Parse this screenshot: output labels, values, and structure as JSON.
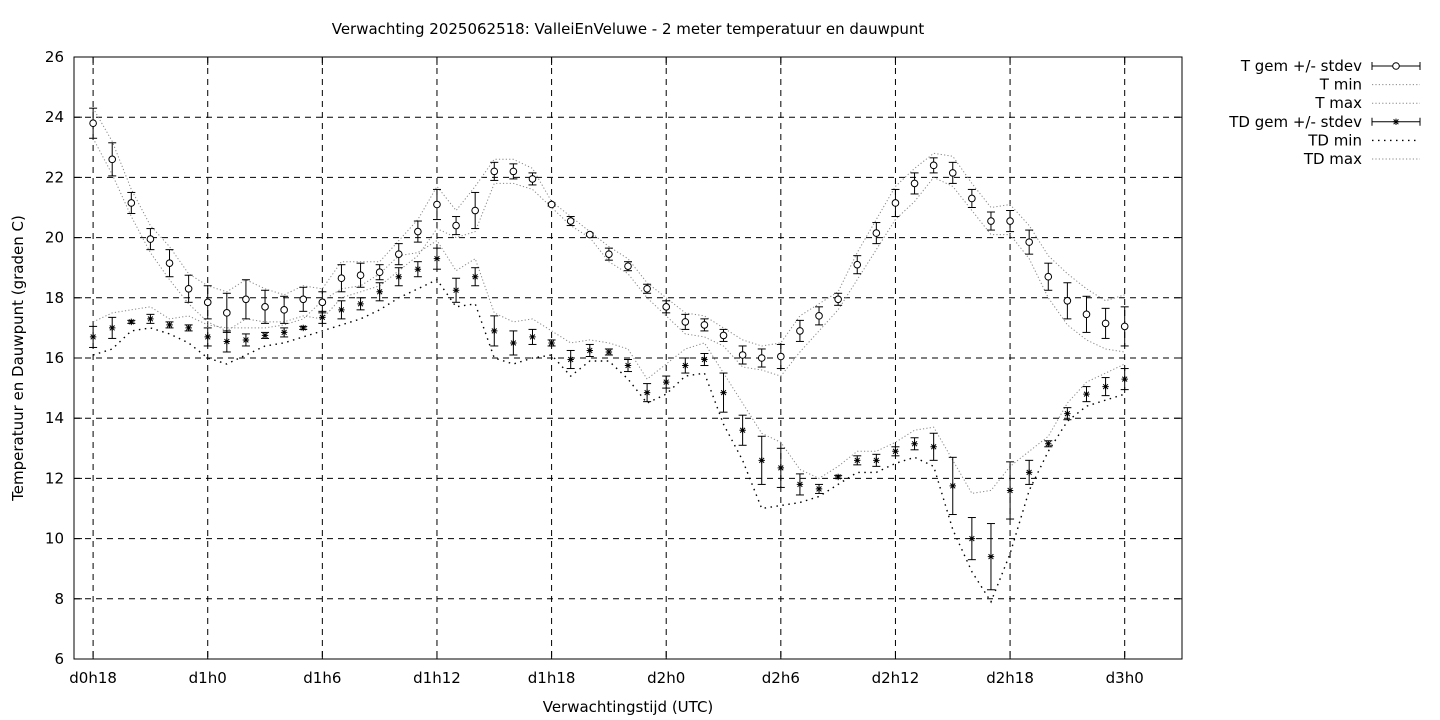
{
  "chart_data": {
    "type": "line",
    "title": "Verwachting 2025062518: ValleiEnVeluwe - 2 meter temperatuur en dauwpunt",
    "xlabel": "Verwachtingstijd (UTC)",
    "ylabel": "Temperatuur en Dauwpunt (graden C)",
    "xlim": [
      -1,
      57
    ],
    "ylim": [
      6,
      26
    ],
    "grid": true,
    "legend_position": "outside-right",
    "x_ticks": [
      {
        "x": 0,
        "label": "d0h18"
      },
      {
        "x": 6,
        "label": "d1h0"
      },
      {
        "x": 12,
        "label": "d1h6"
      },
      {
        "x": 18,
        "label": "d1h12"
      },
      {
        "x": 24,
        "label": "d1h18"
      },
      {
        "x": 30,
        "label": "d2h0"
      },
      {
        "x": 36,
        "label": "d2h6"
      },
      {
        "x": 42,
        "label": "d2h12"
      },
      {
        "x": 48,
        "label": "d2h18"
      },
      {
        "x": 54,
        "label": "d3h0"
      }
    ],
    "y_ticks": [
      "6",
      "8",
      "10",
      "12",
      "14",
      "16",
      "18",
      "20",
      "22",
      "24",
      "26"
    ],
    "x": [
      0,
      1,
      2,
      3,
      4,
      5,
      6,
      7,
      8,
      9,
      10,
      11,
      12,
      13,
      14,
      15,
      16,
      17,
      18,
      19,
      20,
      21,
      22,
      23,
      24,
      25,
      26,
      27,
      28,
      29,
      30,
      31,
      32,
      33,
      34,
      35,
      36,
      37,
      38,
      39,
      40,
      41,
      42,
      43,
      44,
      45,
      46,
      47,
      48,
      49,
      50,
      51,
      52,
      53,
      54
    ],
    "series": [
      {
        "name": "T gem +/- stdev",
        "kind": "errorbar",
        "marker": "circle",
        "values": [
          23.8,
          22.6,
          21.15,
          19.95,
          19.15,
          18.3,
          17.85,
          17.5,
          17.95,
          17.7,
          17.6,
          17.95,
          17.85,
          18.65,
          18.75,
          18.85,
          19.45,
          20.2,
          21.1,
          20.4,
          20.9,
          22.2,
          22.2,
          21.95,
          21.1,
          20.55,
          20.1,
          19.45,
          19.05,
          18.3,
          17.7,
          17.2,
          17.1,
          16.75,
          16.1,
          16.0,
          16.05,
          16.9,
          17.4,
          17.95,
          19.1,
          20.15,
          21.15,
          21.8,
          22.4,
          22.15,
          21.3,
          20.55,
          20.55,
          19.85,
          18.7,
          17.9,
          17.45,
          17.15,
          17.05
        ],
        "errors": [
          0.5,
          0.55,
          0.35,
          0.35,
          0.45,
          0.45,
          0.55,
          0.65,
          0.65,
          0.55,
          0.45,
          0.4,
          0.35,
          0.45,
          0.4,
          0.25,
          0.35,
          0.35,
          0.5,
          0.3,
          0.6,
          0.3,
          0.25,
          0.2,
          0.05,
          0.15,
          0.05,
          0.2,
          0.15,
          0.15,
          0.2,
          0.25,
          0.2,
          0.2,
          0.3,
          0.3,
          0.4,
          0.35,
          0.3,
          0.2,
          0.3,
          0.35,
          0.45,
          0.35,
          0.25,
          0.35,
          0.3,
          0.3,
          0.35,
          0.4,
          0.45,
          0.6,
          0.6,
          0.5,
          0.65
        ]
      },
      {
        "name": "T min",
        "kind": "line",
        "style": "dotted",
        "values": [
          23.3,
          22.1,
          20.7,
          19.5,
          18.6,
          17.8,
          17.2,
          16.9,
          17.3,
          17.2,
          17.2,
          17.4,
          17.3,
          18.0,
          18.2,
          18.4,
          18.9,
          19.4,
          20.3,
          20.0,
          20.2,
          21.8,
          21.8,
          21.6,
          21.0,
          20.4,
          20.0,
          19.2,
          18.8,
          18.0,
          17.4,
          16.8,
          16.7,
          16.4,
          15.7,
          15.6,
          15.4,
          16.2,
          16.9,
          17.6,
          18.6,
          19.6,
          20.6,
          21.2,
          22.0,
          21.7,
          20.9,
          20.1,
          20.1,
          19.3,
          18.0,
          17.1,
          16.6,
          16.3,
          16.2
        ]
      },
      {
        "name": "T max",
        "kind": "line",
        "style": "dotted",
        "values": [
          24.3,
          23.2,
          21.6,
          20.4,
          19.7,
          18.8,
          18.4,
          18.2,
          18.6,
          18.3,
          18.1,
          18.4,
          18.3,
          19.2,
          19.2,
          19.2,
          19.9,
          20.6,
          21.7,
          20.9,
          21.7,
          22.6,
          22.6,
          22.3,
          21.2,
          20.7,
          20.2,
          19.7,
          19.3,
          18.5,
          18.0,
          17.5,
          17.4,
          17.0,
          16.6,
          16.4,
          16.5,
          17.4,
          17.8,
          18.2,
          19.5,
          20.6,
          21.7,
          22.3,
          22.8,
          22.7,
          21.8,
          21.0,
          21.1,
          20.4,
          19.4,
          18.8,
          18.3,
          17.9,
          18.1
        ]
      },
      {
        "name": "TD gem +/- stdev",
        "kind": "errorbar",
        "marker": "star",
        "values": [
          16.7,
          17.0,
          17.2,
          17.3,
          17.1,
          17.0,
          16.7,
          16.55,
          16.6,
          16.75,
          16.85,
          17.0,
          17.35,
          17.6,
          17.8,
          18.2,
          18.7,
          18.95,
          19.3,
          18.25,
          18.7,
          16.9,
          16.5,
          16.7,
          16.5,
          15.95,
          16.25,
          16.2,
          15.75,
          14.85,
          15.2,
          15.75,
          15.95,
          14.85,
          13.6,
          12.6,
          12.35,
          11.8,
          11.65,
          12.05,
          12.6,
          12.6,
          12.9,
          13.15,
          13.05,
          11.75,
          10.0,
          9.4,
          11.6,
          12.2,
          13.15,
          14.15,
          14.8,
          15.05,
          15.3
        ],
        "errors": [
          0.35,
          0.35,
          0.05,
          0.15,
          0.1,
          0.1,
          0.3,
          0.35,
          0.2,
          0.1,
          0.15,
          0.05,
          0.2,
          0.3,
          0.2,
          0.3,
          0.3,
          0.25,
          0.35,
          0.4,
          0.3,
          0.5,
          0.4,
          0.25,
          0.1,
          0.3,
          0.2,
          0.1,
          0.2,
          0.3,
          0.2,
          0.25,
          0.2,
          0.65,
          0.5,
          0.8,
          0.65,
          0.35,
          0.15,
          0.05,
          0.15,
          0.2,
          0.15,
          0.2,
          0.45,
          0.95,
          0.7,
          1.1,
          0.95,
          0.4,
          0.1,
          0.2,
          0.25,
          0.3,
          0.35
        ]
      },
      {
        "name": "TD min",
        "kind": "line",
        "style": "dotted-sparse",
        "values": [
          16.1,
          16.3,
          16.9,
          17.0,
          16.8,
          16.5,
          16.0,
          15.8,
          16.1,
          16.4,
          16.5,
          16.7,
          16.9,
          17.1,
          17.3,
          17.6,
          18.0,
          18.3,
          18.6,
          17.7,
          17.8,
          16.0,
          15.8,
          16.0,
          16.1,
          15.4,
          15.9,
          15.9,
          15.3,
          14.5,
          14.8,
          15.4,
          15.5,
          13.8,
          12.6,
          11.0,
          11.1,
          11.2,
          11.4,
          11.8,
          12.2,
          12.2,
          12.5,
          12.7,
          12.4,
          10.3,
          8.9,
          7.9,
          9.5,
          11.6,
          12.9,
          13.9,
          14.4,
          14.6,
          14.8
        ]
      },
      {
        "name": "TD max",
        "kind": "line",
        "style": "dotted",
        "values": [
          17.2,
          17.5,
          17.6,
          17.7,
          17.3,
          17.4,
          17.1,
          17.0,
          17.0,
          17.0,
          17.1,
          17.3,
          17.9,
          18.3,
          18.4,
          18.8,
          19.4,
          19.5,
          19.9,
          18.9,
          19.3,
          17.5,
          17.2,
          17.3,
          16.9,
          16.5,
          16.6,
          16.5,
          16.3,
          15.3,
          15.8,
          16.3,
          16.5,
          15.5,
          14.5,
          13.5,
          13.2,
          12.3,
          12.0,
          12.4,
          12.9,
          12.9,
          13.2,
          13.6,
          13.7,
          12.6,
          11.5,
          11.6,
          12.4,
          12.9,
          13.4,
          14.5,
          15.2,
          15.5,
          15.8
        ]
      }
    ]
  }
}
